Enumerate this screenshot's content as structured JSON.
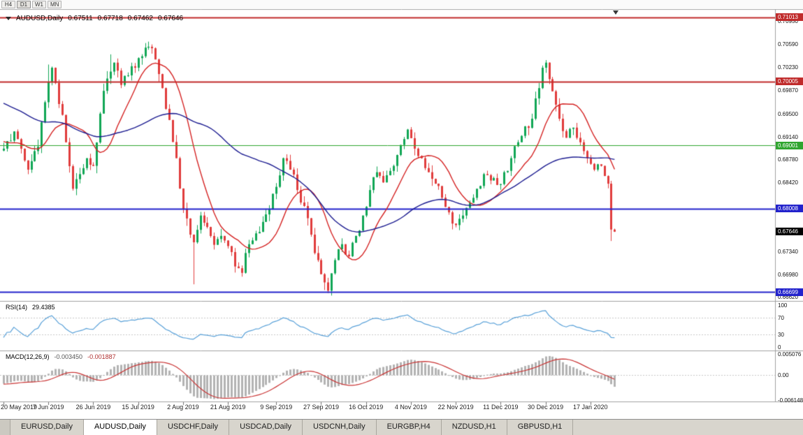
{
  "toolbar": {
    "timeframes": [
      "H4",
      "D1",
      "W1",
      "MN"
    ],
    "active": "D1"
  },
  "chart": {
    "title": {
      "symbol": "AUDUSD,Daily",
      "open": "0.67511",
      "high": "0.67718",
      "low": "0.67462",
      "close": "0.67646"
    }
  },
  "price_axis": {
    "ticks": [
      "0.70950",
      "0.70590",
      "0.70230",
      "0.69870",
      "0.69500",
      "0.69140",
      "0.68780",
      "0.68420",
      "0.67340",
      "0.66980",
      "0.66620"
    ],
    "tags": [
      {
        "label": "0.71013",
        "price": 0.71013,
        "color": "#c02b2b"
      },
      {
        "label": "0.70005",
        "price": 0.70005,
        "color": "#c02b2b"
      },
      {
        "label": "0.69001",
        "price": 0.69001,
        "color": "#2fa52f"
      },
      {
        "label": "0.68008",
        "price": 0.68008,
        "color": "#2222cc"
      },
      {
        "label": "0.67646",
        "price": 0.67646,
        "color": "#000000",
        "current": true
      },
      {
        "label": "0.66699",
        "price": 0.66699,
        "color": "#2222cc"
      }
    ]
  },
  "indicators": {
    "rsi": {
      "title": "RSI(14)",
      "value": "29.4385",
      "axis": [
        "100",
        "70",
        "30",
        "0"
      ],
      "levels": [
        70,
        30
      ],
      "color": "#58a0d8"
    },
    "macd": {
      "title": "MACD(12,26,9)",
      "value_main": "-0.003450",
      "value_signal": "-0.001887",
      "axis": [
        "0.005076",
        "0.00",
        "-0.006148"
      ],
      "histogram_color": "#b3b3b3",
      "signal_color": "#c93434"
    }
  },
  "bottom_tabs": [
    {
      "label": "EURUSD,Daily",
      "active": false
    },
    {
      "label": "AUDUSD,Daily",
      "active": true
    },
    {
      "label": "USDCHF,Daily",
      "active": false
    },
    {
      "label": "USDCAD,Daily",
      "active": false
    },
    {
      "label": "USDCNH,Daily",
      "active": false
    },
    {
      "label": "EURGBP,H4",
      "active": false
    },
    {
      "label": "NZDUSD,H1",
      "active": false
    },
    {
      "label": "GBPUSD,H1",
      "active": false
    }
  ],
  "chart_data": {
    "type": "candlestick",
    "symbol": "AUDUSD",
    "timeframe": "Daily",
    "bars_visible": 178,
    "visible_price_range": [
      0.6657,
      0.7113
    ],
    "last_ohlc": {
      "open": 0.67511,
      "high": 0.67718,
      "low": 0.67462,
      "close": 0.67646
    },
    "candle_up_color": "#10a655",
    "candle_down_color": "#e03c3c",
    "x_ticks": [
      {
        "i": 0,
        "label": "20 May 2019"
      },
      {
        "i": 13,
        "label": "7 Jun 2019"
      },
      {
        "i": 26,
        "label": "26 Jun 2019"
      },
      {
        "i": 39,
        "label": "15 Jul 2019"
      },
      {
        "i": 52,
        "label": "2 Aug 2019"
      },
      {
        "i": 65,
        "label": "21 Aug 2019"
      },
      {
        "i": 79,
        "label": "9 Sep 2019"
      },
      {
        "i": 92,
        "label": "27 Sep 2019"
      },
      {
        "i": 105,
        "label": "16 Oct 2019"
      },
      {
        "i": 118,
        "label": "4 Nov 2019"
      },
      {
        "i": 131,
        "label": "22 Nov 2019"
      },
      {
        "i": 144,
        "label": "11 Dec 2019"
      },
      {
        "i": 157,
        "label": "30 Dec 2019"
      },
      {
        "i": 170,
        "label": "17 Jan 2020"
      }
    ],
    "close_anchors": [
      [
        -60,
        0.7075
      ],
      [
        -45,
        0.703
      ],
      [
        -30,
        0.6985
      ],
      [
        -15,
        0.6935
      ],
      [
        -5,
        0.69
      ],
      [
        0,
        0.6895
      ],
      [
        3,
        0.6922
      ],
      [
        7,
        0.6862
      ],
      [
        10,
        0.6898
      ],
      [
        13,
        0.7
      ],
      [
        14,
        0.7022
      ],
      [
        17,
        0.6948
      ],
      [
        20,
        0.6832
      ],
      [
        22,
        0.6855
      ],
      [
        24,
        0.688
      ],
      [
        26,
        0.6868
      ],
      [
        28,
        0.695
      ],
      [
        30,
        0.7005
      ],
      [
        32,
        0.703
      ],
      [
        34,
        0.6995
      ],
      [
        36,
        0.701
      ],
      [
        38,
        0.7022
      ],
      [
        40,
        0.704
      ],
      [
        42,
        0.7055
      ],
      [
        44,
        0.7035
      ],
      [
        46,
        0.699
      ],
      [
        48,
        0.694
      ],
      [
        50,
        0.688
      ],
      [
        52,
        0.68
      ],
      [
        54,
        0.676
      ],
      [
        55,
        0.6748
      ],
      [
        57,
        0.679
      ],
      [
        59,
        0.6772
      ],
      [
        61,
        0.6744
      ],
      [
        63,
        0.6758
      ],
      [
        65,
        0.6742
      ],
      [
        67,
        0.671
      ],
      [
        69,
        0.67
      ],
      [
        71,
        0.6745
      ],
      [
        73,
        0.6762
      ],
      [
        75,
        0.678
      ],
      [
        77,
        0.68
      ],
      [
        79,
        0.6835
      ],
      [
        81,
        0.688
      ],
      [
        83,
        0.6862
      ],
      [
        85,
        0.683
      ],
      [
        87,
        0.6805
      ],
      [
        89,
        0.676
      ],
      [
        91,
        0.672
      ],
      [
        93,
        0.6685
      ],
      [
        94,
        0.6672
      ],
      [
        96,
        0.672
      ],
      [
        98,
        0.6745
      ],
      [
        100,
        0.6726
      ],
      [
        102,
        0.6758
      ],
      [
        104,
        0.679
      ],
      [
        106,
        0.683
      ],
      [
        108,
        0.6858
      ],
      [
        110,
        0.6842
      ],
      [
        112,
        0.686
      ],
      [
        114,
        0.6885
      ],
      [
        116,
        0.691
      ],
      [
        117,
        0.6925
      ],
      [
        119,
        0.6895
      ],
      [
        121,
        0.688
      ],
      [
        123,
        0.6858
      ],
      [
        125,
        0.684
      ],
      [
        127,
        0.6818
      ],
      [
        129,
        0.6795
      ],
      [
        131,
        0.6775
      ],
      [
        133,
        0.679
      ],
      [
        135,
        0.681
      ],
      [
        137,
        0.6832
      ],
      [
        139,
        0.6855
      ],
      [
        141,
        0.6845
      ],
      [
        143,
        0.6838
      ],
      [
        145,
        0.6858
      ],
      [
        147,
        0.688
      ],
      [
        149,
        0.6905
      ],
      [
        151,
        0.693
      ],
      [
        153,
        0.6942
      ],
      [
        155,
        0.699
      ],
      [
        156,
        0.7022
      ],
      [
        157,
        0.703
      ],
      [
        159,
        0.6985
      ],
      [
        161,
        0.6942
      ],
      [
        163,
        0.6912
      ],
      [
        165,
        0.6928
      ],
      [
        167,
        0.6905
      ],
      [
        169,
        0.688
      ],
      [
        171,
        0.6862
      ],
      [
        173,
        0.6868
      ],
      [
        174,
        0.6852
      ],
      [
        175,
        0.684
      ],
      [
        176,
        0.6768
      ],
      [
        177,
        0.67646
      ]
    ],
    "wick_overrides": {
      "13": {
        "high": 0.7027
      },
      "31": {
        "high": 0.7043
      },
      "42": {
        "high": 0.7063
      },
      "55": {
        "low": 0.6682
      },
      "69": {
        "low": 0.6694
      },
      "93": {
        "low": 0.6673
      },
      "157": {
        "high": 0.7034
      },
      "176": {
        "low": 0.675
      }
    },
    "horizontal_lines": [
      {
        "price": 0.71013,
        "color": "#c02b2b",
        "width": 2
      },
      {
        "price": 0.70005,
        "color": "#c02b2b",
        "width": 2
      },
      {
        "price": 0.69001,
        "color": "#2fa52f",
        "width": 1
      },
      {
        "price": 0.68008,
        "color": "#2222cc",
        "width": 2
      },
      {
        "price": 0.66699,
        "color": "#2222cc",
        "width": 2
      }
    ],
    "moving_averages": [
      {
        "period": 13,
        "color": "#d42222"
      },
      {
        "period": 50,
        "color": "#1c1c90"
      }
    ],
    "rsi_period": 14,
    "macd_params": [
      12,
      26,
      9
    ]
  }
}
